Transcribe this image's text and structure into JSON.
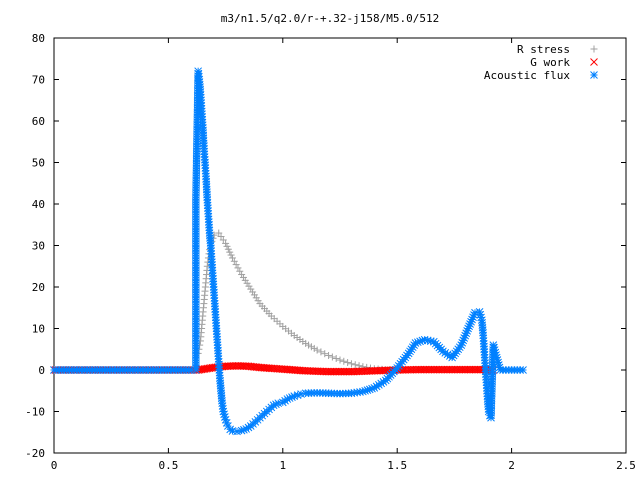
{
  "chart_data": {
    "type": "scatter",
    "title": "m3/n1.5/q2.0/r-+.32-j158/M5.0/512",
    "xlabel": "",
    "ylabel": "",
    "xlim": [
      0,
      2.5
    ],
    "ylim": [
      -20,
      80
    ],
    "xticks": [
      0,
      0.5,
      1,
      1.5,
      2,
      2.5
    ],
    "xtick_labels": [
      "0",
      "0.5",
      "1",
      "1.5",
      "2",
      "2.5"
    ],
    "yticks": [
      -20,
      -10,
      0,
      10,
      20,
      30,
      40,
      50,
      60,
      70,
      80
    ],
    "ytick_labels": [
      "-20",
      "-10",
      "0",
      "10",
      "20",
      "30",
      "40",
      "50",
      "60",
      "70",
      "80"
    ],
    "grid": false,
    "legend_position": "top-right",
    "series": [
      {
        "name": "R stress",
        "marker": "plus",
        "color": "#a0a0a0",
        "x": [
          0.63,
          0.64,
          0.645,
          0.65,
          0.655,
          0.66,
          0.665,
          0.67,
          0.675,
          0.68,
          0.69,
          0.7,
          0.72,
          0.75,
          0.78,
          0.82,
          0.86,
          0.9,
          0.95,
          1.0,
          1.05,
          1.1,
          1.15,
          1.2,
          1.25,
          1.3,
          1.35,
          1.4,
          1.45,
          1.5
        ],
        "y": [
          4,
          7,
          10,
          13,
          16,
          19,
          22,
          25,
          27,
          29,
          31,
          32.5,
          33,
          30.5,
          27,
          23,
          19.5,
          16,
          13,
          10.5,
          8.3,
          6.4,
          4.8,
          3.5,
          2.4,
          1.5,
          0.8,
          0.3,
          0.1,
          0
        ]
      },
      {
        "name": "G work",
        "marker": "x",
        "color": "#ff0000",
        "x": [
          0.0,
          0.63,
          0.7,
          0.75,
          0.8,
          0.85,
          0.9,
          1.0,
          1.1,
          1.2,
          1.3,
          1.4,
          1.5,
          1.6,
          1.7,
          1.8,
          1.88,
          1.92
        ],
        "y": [
          0,
          0,
          0.6,
          0.9,
          1.0,
          0.9,
          0.6,
          0.2,
          -0.2,
          -0.4,
          -0.4,
          -0.2,
          0,
          0.1,
          0.1,
          0.1,
          0.1,
          0
        ]
      },
      {
        "name": "Acoustic flux",
        "marker": "asterisk",
        "color": "#0080ff",
        "x": [
          0.0,
          0.1,
          0.2,
          0.3,
          0.4,
          0.5,
          0.6,
          0.62,
          0.62,
          0.63,
          0.635,
          0.64,
          0.645,
          0.65,
          0.655,
          0.66,
          0.665,
          0.67,
          0.675,
          0.68,
          0.685,
          0.69,
          0.695,
          0.7,
          0.705,
          0.71,
          0.715,
          0.72,
          0.725,
          0.73,
          0.735,
          0.74,
          0.75,
          0.76,
          0.77,
          0.78,
          0.8,
          0.82,
          0.84,
          0.86,
          0.88,
          0.9,
          0.92,
          0.94,
          0.96,
          0.98,
          1.0,
          1.02,
          1.05,
          1.08,
          1.1,
          1.15,
          1.2,
          1.25,
          1.3,
          1.35,
          1.4,
          1.45,
          1.5,
          1.55,
          1.58,
          1.62,
          1.66,
          1.7,
          1.74,
          1.78,
          1.81,
          1.84,
          1.86,
          1.87,
          1.875,
          1.88,
          1.885,
          1.89,
          1.895,
          1.9,
          1.905,
          1.91,
          1.92,
          1.95,
          2.0,
          2.05
        ],
        "y": [
          0,
          0,
          0,
          0,
          0,
          0,
          0,
          0,
          41,
          72,
          70,
          67,
          63,
          59,
          54,
          50,
          46,
          41,
          37,
          33,
          30,
          26,
          22,
          18,
          14,
          10,
          6,
          2,
          -2,
          -5,
          -8,
          -10,
          -12,
          -13.5,
          -14.3,
          -14.7,
          -14.8,
          -14.6,
          -14.2,
          -13.5,
          -12.5,
          -11.5,
          -10.5,
          -9.5,
          -8.5,
          -8,
          -7.8,
          -7,
          -6.3,
          -5.8,
          -5.6,
          -5.5,
          -5.6,
          -5.7,
          -5.6,
          -5.2,
          -4.3,
          -2.5,
          0.5,
          4,
          6.5,
          7.3,
          6.8,
          4.5,
          3,
          6,
          10,
          13.8,
          14,
          12,
          9,
          5,
          1,
          -3,
          -7,
          -10,
          -11,
          -11.5,
          6,
          0,
          0,
          0
        ]
      }
    ]
  }
}
